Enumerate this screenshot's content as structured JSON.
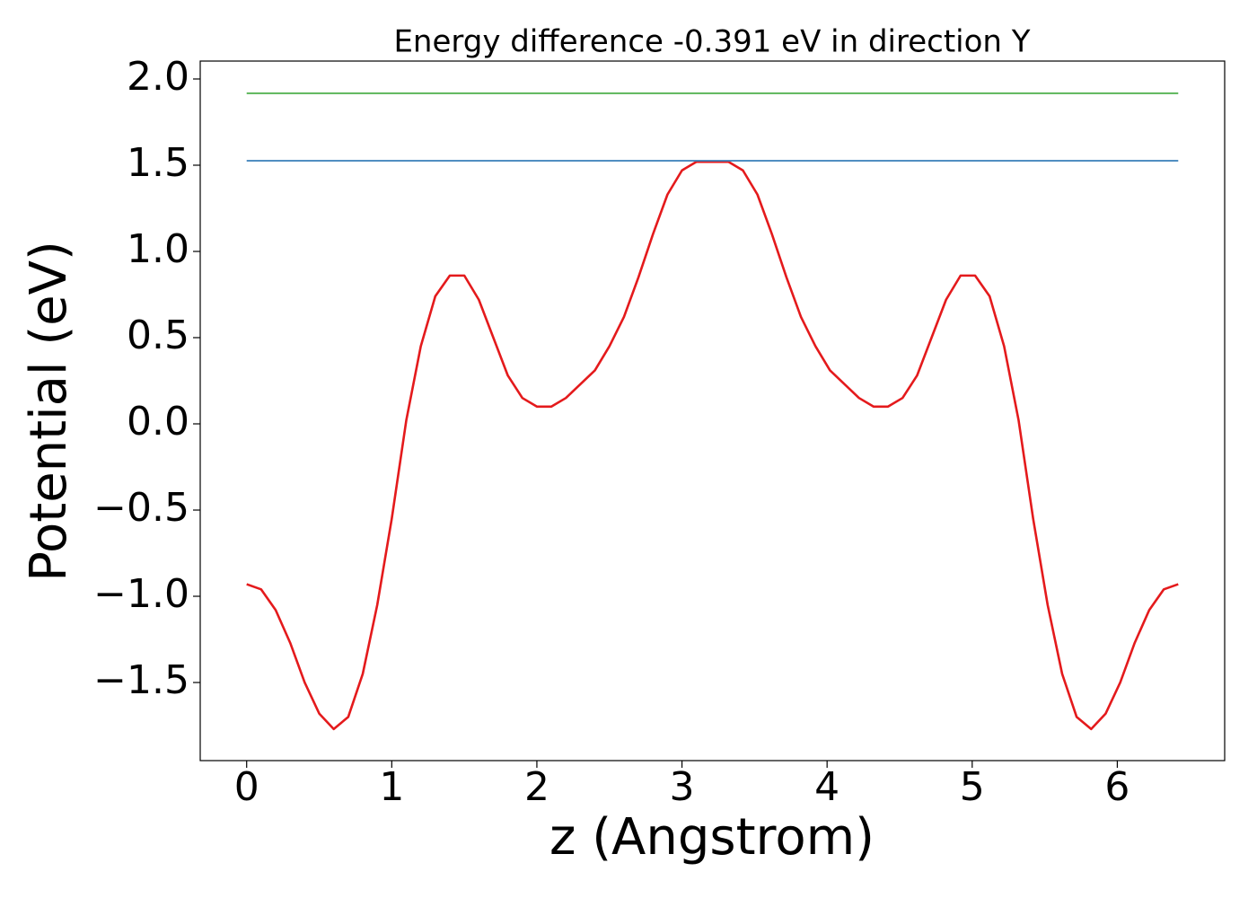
{
  "chart_data": {
    "type": "line",
    "title": "Energy difference -0.391 eV in direction Y",
    "x_label": "z (Angstrom)",
    "y_label": "Potential (eV)",
    "xlim": [
      -0.32,
      6.74
    ],
    "ylim": [
      -1.953,
      2.104
    ],
    "xticks": [
      0,
      1,
      2,
      3,
      4,
      5,
      6
    ],
    "yticks": [
      {
        "value": -1.5,
        "label": "−1.5"
      },
      {
        "value": -1.0,
        "label": "−1.0"
      },
      {
        "value": -0.5,
        "label": "−0.5"
      },
      {
        "value": 0,
        "label": "0.0"
      },
      0.5,
      {
        "value": 1,
        "label": "1.0"
      },
      1.5,
      {
        "value": 2,
        "label": "2.0"
      }
    ],
    "grid": false,
    "series": [
      {
        "color": "#e41a1c",
        "x": [
          0,
          0.1,
          0.2,
          0.3,
          0.4,
          0.5,
          0.6,
          0.7,
          0.8,
          0.9,
          1.0,
          1.1,
          1.2,
          1.3,
          1.4,
          1.5,
          1.6,
          1.7,
          1.8,
          1.9,
          2.0,
          2.1,
          2.2,
          2.3,
          2.4,
          2.5,
          2.6,
          2.7,
          2.8,
          2.9,
          3.0,
          3.1,
          3.2,
          3.32,
          3.42,
          3.52,
          3.62,
          3.72,
          3.82,
          3.92,
          4.02,
          4.12,
          4.22,
          4.32,
          4.42,
          4.52,
          4.62,
          4.72,
          4.82,
          4.92,
          5.02,
          5.12,
          5.22,
          5.32,
          5.42,
          5.52,
          5.62,
          5.72,
          5.82,
          5.92,
          6.02,
          6.12,
          6.22,
          6.32,
          6.42
        ],
        "values": [
          -0.93,
          -0.96,
          -1.08,
          -1.27,
          -1.5,
          -1.68,
          -1.77,
          -1.7,
          -1.45,
          -1.05,
          -0.55,
          0.02,
          0.45,
          0.74,
          0.86,
          0.86,
          0.72,
          0.5,
          0.28,
          0.15,
          0.1,
          0.1,
          0.15,
          0.23,
          0.31,
          0.45,
          0.62,
          0.85,
          1.1,
          1.33,
          1.47,
          1.52,
          1.52,
          1.52,
          1.47,
          1.33,
          1.1,
          0.85,
          0.62,
          0.45,
          0.31,
          0.23,
          0.15,
          0.1,
          0.1,
          0.15,
          0.28,
          0.5,
          0.72,
          0.86,
          0.86,
          0.74,
          0.45,
          0.02,
          -0.55,
          -1.05,
          -1.45,
          -1.7,
          -1.77,
          -1.68,
          -1.5,
          -1.27,
          -1.08,
          -0.96,
          -0.93
        ]
      },
      {
        "color": "#377eb8",
        "x": [
          0,
          6.42
        ],
        "values": [
          1.526,
          1.526
        ]
      },
      {
        "color": "#4daf4a",
        "x": [
          0,
          6.42
        ],
        "values": [
          1.917,
          1.917
        ]
      }
    ]
  }
}
